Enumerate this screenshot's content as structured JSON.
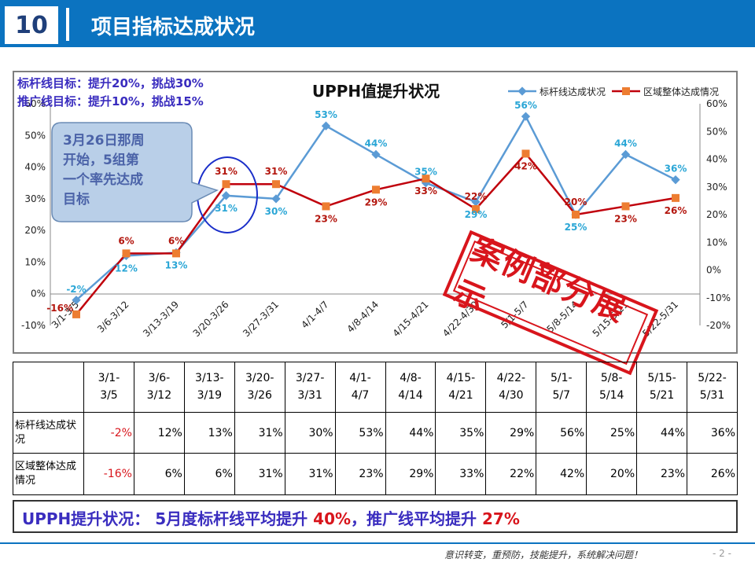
{
  "header": {
    "number": "10",
    "title": "项目指标达成状况"
  },
  "targets": {
    "line1": "标杆线目标：提升20%，挑战30%",
    "line2": "推广线目标：提升10%，挑战15%"
  },
  "callout": {
    "line1": "3月26日那周",
    "line2": "开始，5组第",
    "line3": "一个率先达成",
    "line4": "目标"
  },
  "stamp": {
    "text": "案例部分展示"
  },
  "colors": {
    "benchmark": "#5b9bd5",
    "region": "#c0000c",
    "region_marker": "#ed7d31",
    "header": "#0b73c0",
    "accent_red": "#d8151c",
    "accent_blue": "#3a2dbf"
  },
  "chart_data": {
    "type": "line",
    "title": "UPPH值提升状况",
    "categories": [
      "3/1-3/5",
      "3/6-3/12",
      "3/13-3/19",
      "3/20-3/26",
      "3/27-3/31",
      "4/1-4/7",
      "4/8-4/14",
      "4/15-4/21",
      "4/22-4/30",
      "5/1-5/7",
      "5/8-5/14",
      "5/15-5/21",
      "5/22-5/31"
    ],
    "y_ticks": [
      "-10%",
      "0%",
      "10%",
      "20%",
      "30%",
      "40%",
      "50%",
      "60%"
    ],
    "y2_ticks": [
      "-20%",
      "-10%",
      "0%",
      "10%",
      "20%",
      "30%",
      "40%",
      "50%",
      "60%"
    ],
    "ylim": [
      -10,
      60
    ],
    "y2lim": [
      -20,
      60
    ],
    "grid": false,
    "legend_position": "top-right",
    "series": [
      {
        "name": "标杆线达成状况",
        "axis": "left",
        "marker": "diamond",
        "values": [
          -2,
          12,
          13,
          31,
          30,
          53,
          44,
          35,
          29,
          56,
          25,
          44,
          36
        ],
        "labels": [
          "-2%",
          "12%",
          "13%",
          "31%",
          "30%",
          "53%",
          "44%",
          "35%",
          "29%",
          "56%",
          "25%",
          "44%",
          "36%"
        ]
      },
      {
        "name": "区域整体达成情况",
        "axis": "right",
        "marker": "square",
        "values": [
          -16,
          6,
          6,
          31,
          31,
          23,
          29,
          33,
          22,
          42,
          20,
          23,
          26
        ],
        "labels": [
          "-16%",
          "6%",
          "6%",
          "31%",
          "31%",
          "23%",
          "29%",
          "33%",
          "22%",
          "42%",
          "20%",
          "23%",
          "26%"
        ]
      }
    ]
  },
  "table": {
    "headers": [
      "3/1-\n3/5",
      "3/6-\n3/12",
      "3/13-\n3/19",
      "3/20-\n3/26",
      "3/27-\n3/31",
      "4/1-\n4/7",
      "4/8-\n4/14",
      "4/15-\n4/21",
      "4/22-\n4/30",
      "5/1-\n5/7",
      "5/8-\n5/14",
      "5/15-\n5/21",
      "5/22-\n5/31"
    ],
    "rows": [
      {
        "label": "标杆线达成状况",
        "values": [
          "-2%",
          "12%",
          "13%",
          "31%",
          "30%",
          "53%",
          "44%",
          "35%",
          "29%",
          "56%",
          "25%",
          "44%",
          "36%"
        ]
      },
      {
        "label": "区域整体达成情况",
        "values": [
          "-16%",
          "6%",
          "6%",
          "31%",
          "31%",
          "23%",
          "29%",
          "33%",
          "22%",
          "42%",
          "20%",
          "23%",
          "26%"
        ]
      }
    ]
  },
  "summary": {
    "label": "UPPH提升状况：",
    "text1": "5月度标杆线平均提升",
    "val1": "40%",
    "sep": "，",
    "text2": "推广线平均提升",
    "val2": "27%"
  },
  "footer": {
    "slogan": "意识转变，重预防，技能提升，系统解决问题！",
    "page": "- 2 -"
  }
}
